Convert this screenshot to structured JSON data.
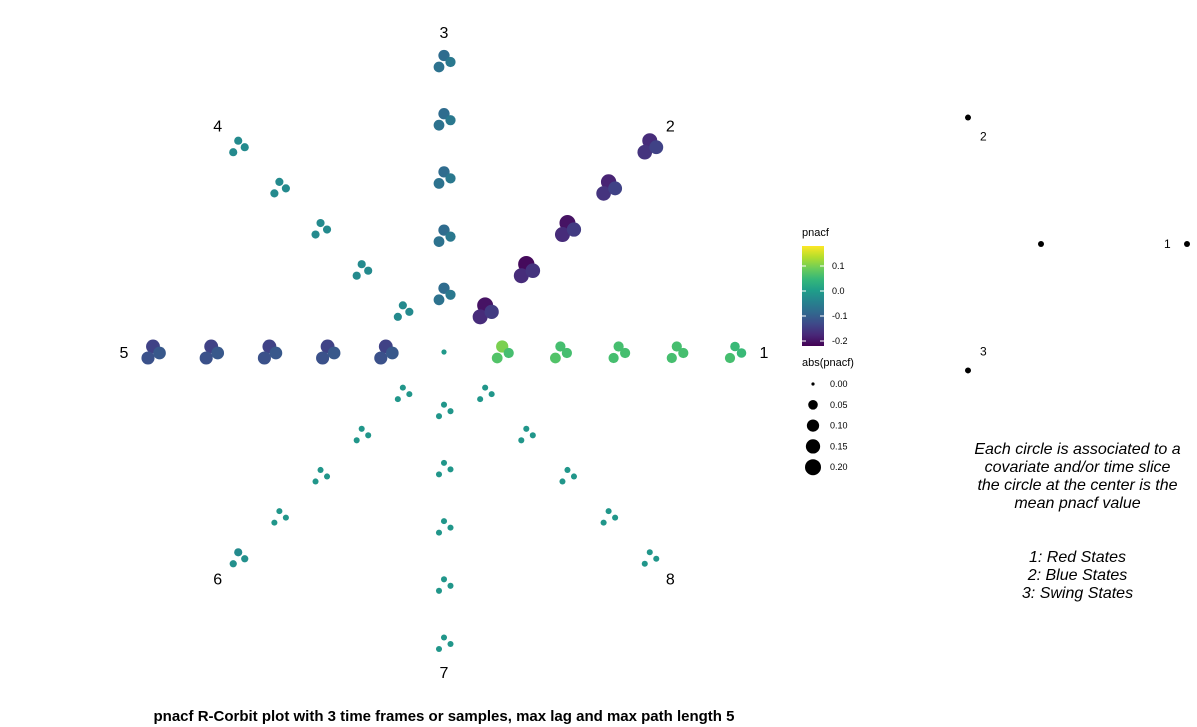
{
  "chart_data": {
    "type": "scatter",
    "title": "pnacf R-Corbit plot with 3 time frames or samples, max lag and max path length 5",
    "directions": [
      {
        "label": "1",
        "angle_deg": 0,
        "points": [
          [
            0.1,
            0.07,
            0.06
          ],
          [
            0.06,
            0.07,
            0.06
          ],
          [
            0.06,
            0.06,
            0.06
          ],
          [
            0.06,
            0.06,
            0.06
          ],
          [
            0.05,
            0.06,
            0.05
          ]
        ]
      },
      {
        "label": "2",
        "angle_deg": 45,
        "points": [
          [
            -0.2,
            -0.17,
            -0.15
          ],
          [
            -0.21,
            -0.17,
            -0.16
          ],
          [
            -0.2,
            -0.17,
            -0.15
          ],
          [
            -0.18,
            -0.16,
            -0.14
          ],
          [
            -0.17,
            -0.16,
            -0.14
          ]
        ]
      },
      {
        "label": "3",
        "angle_deg": 90,
        "points": [
          [
            -0.08,
            -0.07,
            -0.06
          ],
          [
            -0.08,
            -0.07,
            -0.06
          ],
          [
            -0.08,
            -0.07,
            -0.06
          ],
          [
            -0.08,
            -0.07,
            -0.06
          ],
          [
            -0.08,
            -0.07,
            -0.06
          ]
        ]
      },
      {
        "label": "4",
        "angle_deg": 135,
        "points": [
          [
            -0.03,
            -0.03,
            -0.03
          ],
          [
            -0.03,
            -0.03,
            -0.03
          ],
          [
            -0.03,
            -0.03,
            -0.03
          ],
          [
            -0.03,
            -0.03,
            -0.03
          ],
          [
            -0.03,
            -0.03,
            -0.03
          ]
        ]
      },
      {
        "label": "5",
        "angle_deg": 180,
        "points": [
          [
            -0.14,
            -0.12,
            -0.11
          ],
          [
            -0.14,
            -0.12,
            -0.11
          ],
          [
            -0.14,
            -0.12,
            -0.11
          ],
          [
            -0.14,
            -0.12,
            -0.11
          ],
          [
            -0.14,
            -0.12,
            -0.11
          ]
        ]
      },
      {
        "label": "6",
        "angle_deg": 225,
        "points": [
          [
            -0.01,
            -0.01,
            -0.01
          ],
          [
            -0.01,
            -0.01,
            -0.01
          ],
          [
            -0.01,
            -0.01,
            -0.01
          ],
          [
            -0.01,
            -0.01,
            -0.01
          ],
          [
            -0.03,
            -0.02,
            -0.02
          ]
        ]
      },
      {
        "label": "7",
        "angle_deg": 270,
        "points": [
          [
            -0.01,
            -0.01,
            -0.01
          ],
          [
            -0.01,
            -0.01,
            -0.01
          ],
          [
            -0.01,
            -0.01,
            -0.01
          ],
          [
            -0.01,
            -0.01,
            -0.01
          ],
          [
            -0.01,
            -0.01,
            -0.01
          ]
        ]
      },
      {
        "label": "8",
        "angle_deg": 315,
        "points": [
          [
            -0.01,
            -0.01,
            -0.01
          ],
          [
            -0.01,
            -0.01,
            -0.01
          ],
          [
            -0.01,
            -0.01,
            -0.01
          ],
          [
            -0.01,
            -0.01,
            -0.01
          ],
          [
            -0.01,
            -0.01,
            -0.01
          ]
        ]
      }
    ],
    "center_value": -0.005,
    "color_legend": {
      "title": "pnacf",
      "ticks": [
        0.1,
        0.0,
        -0.1,
        -0.2
      ],
      "tick_labels": [
        "0.1",
        "0.0",
        "-0.1",
        "-0.2"
      ],
      "range": [
        -0.22,
        0.18
      ]
    },
    "size_legend": {
      "title": "abs(pnacf)",
      "values": [
        0.0,
        0.05,
        0.1,
        0.15,
        0.2
      ],
      "labels": [
        "0.00",
        "0.05",
        "0.10",
        "0.15",
        "0.20"
      ]
    },
    "inset_labels": [
      "1",
      "2",
      "3"
    ],
    "legend_position": "right",
    "grid": false
  },
  "caption": {
    "lines": [
      "Each circle is associated to a",
      "covariate and/or time slice",
      "the circle at the center is the",
      "mean pnacf value"
    ],
    "series_lines": [
      "1: Red States",
      "2: Blue States",
      "3: Swing States"
    ]
  }
}
